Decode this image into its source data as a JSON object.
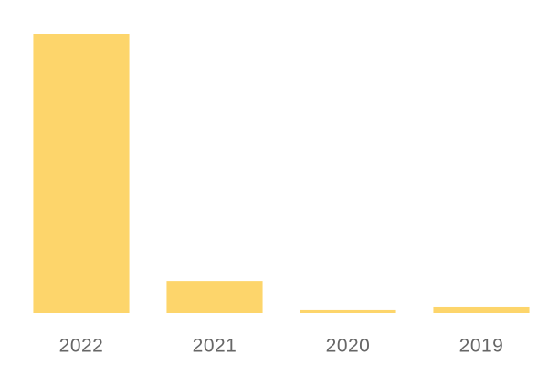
{
  "chart_data": {
    "type": "bar",
    "categories": [
      "2022",
      "2021",
      "2020",
      "2019"
    ],
    "values": [
      100,
      11.4,
      1,
      2.3
    ],
    "color": "#fdd56b",
    "ylim": [
      0,
      100
    ]
  }
}
